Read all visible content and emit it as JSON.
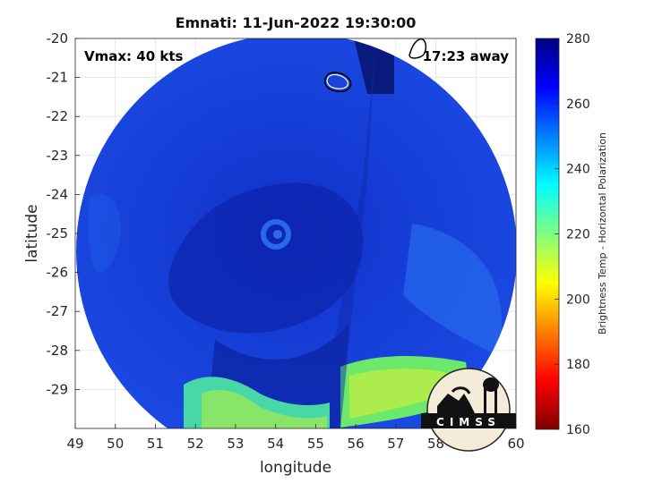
{
  "chart_data": {
    "type": "heatmap",
    "title": "Emnati: 11-Jun-2022 19:30:00",
    "xlabel": "longitude",
    "ylabel": "latitude",
    "xlim": [
      49,
      60
    ],
    "ylim": [
      -30,
      -20
    ],
    "x_ticks": [
      "49",
      "50",
      "51",
      "52",
      "53",
      "54",
      "55",
      "56",
      "57",
      "58",
      "59",
      "60"
    ],
    "y_ticks": [
      "-20",
      "-21",
      "-22",
      "-23",
      "-24",
      "-25",
      "-26",
      "-27",
      "-28",
      "-29"
    ],
    "colorbar": {
      "label": "Brightness Temp - Horizontal Polarization",
      "range": [
        160,
        280
      ],
      "ticks": [
        "280",
        "260",
        "240",
        "220",
        "200",
        "180",
        "160"
      ]
    },
    "annotations": {
      "vmax": "Vmax: 40 kts",
      "time_away": "17:23 away"
    },
    "storm_center": {
      "lon": 54.0,
      "lat": -25.1
    },
    "grid": true
  },
  "logo": {
    "text": "CIMSS"
  },
  "colors": {
    "cold": "#1e3cc8",
    "dark": "#0a1a8c",
    "warm": "#3cd7a0"
  }
}
